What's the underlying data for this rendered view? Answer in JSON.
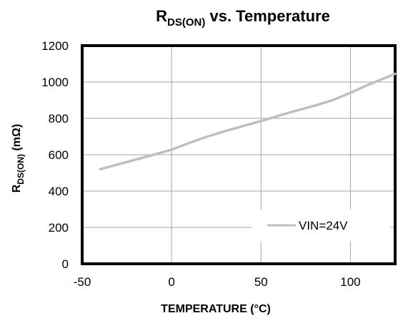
{
  "chart_data": {
    "type": "line",
    "title": {
      "main": "R",
      "subscript": "DS(ON)",
      "rest": " vs. Temperature"
    },
    "xlabel": "TEMPERATURE (°C)",
    "ylabel": {
      "main": "R",
      "subscript": "DS(ON)",
      "rest": " (mΩ)"
    },
    "xlim": [
      -50,
      125
    ],
    "ylim": [
      0,
      1200
    ],
    "x_ticks": [
      -50,
      0,
      50,
      100
    ],
    "y_ticks": [
      0,
      200,
      400,
      600,
      800,
      1000,
      1200
    ],
    "x_tick_labels": [
      "-50",
      "0",
      "50",
      "100"
    ],
    "y_tick_labels": [
      "0",
      "200",
      "400",
      "600",
      "800",
      "1000",
      "1200"
    ],
    "grid": true,
    "legend_position": "bottom-right",
    "series": [
      {
        "name": "VIN=24V",
        "color": "#bfbfbf",
        "x": [
          -40,
          -25,
          -10,
          0,
          10,
          20,
          30,
          40,
          50,
          60,
          70,
          80,
          90,
          100,
          110,
          120,
          125
        ],
        "y": [
          520,
          560,
          600,
          628,
          665,
          700,
          730,
          758,
          785,
          815,
          843,
          870,
          900,
          940,
          985,
          1025,
          1045
        ]
      }
    ]
  }
}
